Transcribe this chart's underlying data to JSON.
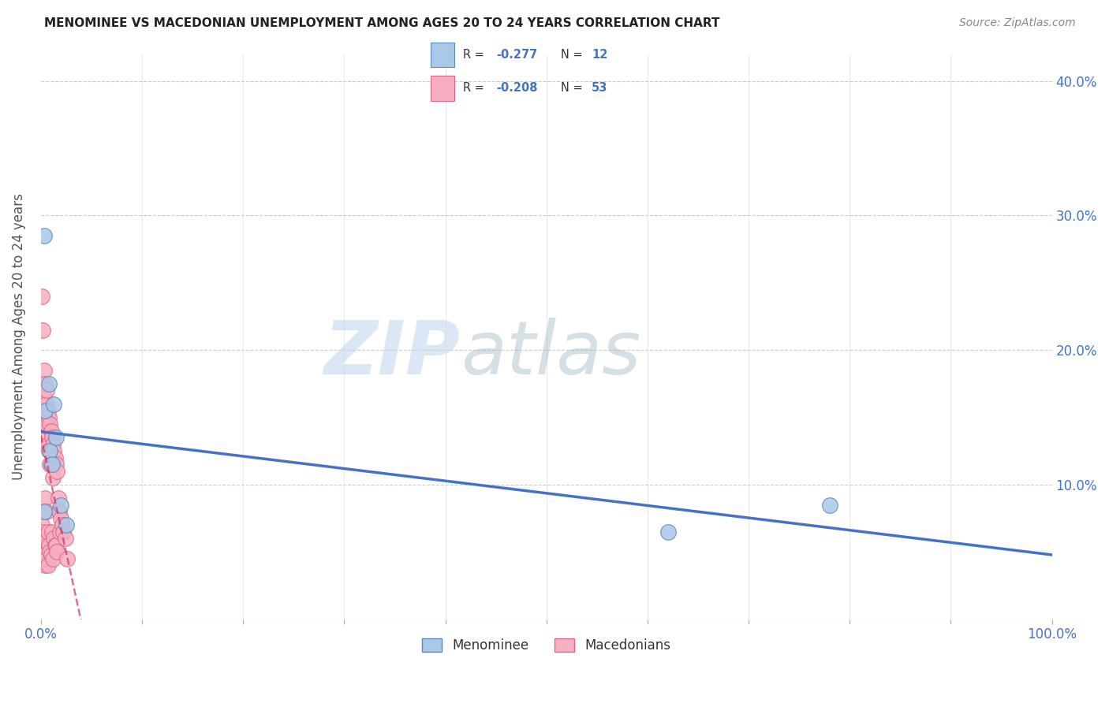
{
  "title": "MENOMINEE VS MACEDONIAN UNEMPLOYMENT AMONG AGES 20 TO 24 YEARS CORRELATION CHART",
  "source": "Source: ZipAtlas.com",
  "ylabel": "Unemployment Among Ages 20 to 24 years",
  "xlim": [
    0.0,
    1.0
  ],
  "ylim": [
    0.0,
    0.42
  ],
  "xticks": [
    0.0,
    0.1,
    0.2,
    0.3,
    0.4,
    0.5,
    0.6,
    0.7,
    0.8,
    0.9,
    1.0
  ],
  "yticks": [
    0.0,
    0.1,
    0.2,
    0.3,
    0.4
  ],
  "menominee_x": [
    0.003,
    0.004,
    0.008,
    0.009,
    0.011,
    0.013,
    0.015,
    0.02,
    0.025,
    0.62,
    0.78,
    0.003
  ],
  "menominee_y": [
    0.285,
    0.155,
    0.175,
    0.125,
    0.115,
    0.16,
    0.135,
    0.085,
    0.07,
    0.065,
    0.085,
    0.08
  ],
  "macedonian_x": [
    0.001,
    0.001,
    0.002,
    0.002,
    0.002,
    0.003,
    0.003,
    0.003,
    0.004,
    0.004,
    0.004,
    0.004,
    0.005,
    0.005,
    0.005,
    0.006,
    0.006,
    0.006,
    0.006,
    0.007,
    0.007,
    0.007,
    0.007,
    0.008,
    0.008,
    0.008,
    0.009,
    0.009,
    0.009,
    0.01,
    0.01,
    0.01,
    0.011,
    0.011,
    0.012,
    0.012,
    0.012,
    0.013,
    0.013,
    0.014,
    0.014,
    0.015,
    0.015,
    0.016,
    0.016,
    0.017,
    0.018,
    0.019,
    0.02,
    0.021,
    0.022,
    0.024,
    0.026
  ],
  "macedonian_y": [
    0.24,
    0.07,
    0.215,
    0.145,
    0.065,
    0.185,
    0.165,
    0.055,
    0.175,
    0.145,
    0.09,
    0.04,
    0.16,
    0.135,
    0.058,
    0.17,
    0.145,
    0.08,
    0.045,
    0.155,
    0.13,
    0.065,
    0.04,
    0.15,
    0.125,
    0.055,
    0.145,
    0.115,
    0.05,
    0.14,
    0.115,
    0.048,
    0.135,
    0.065,
    0.13,
    0.105,
    0.045,
    0.125,
    0.06,
    0.12,
    0.055,
    0.115,
    0.055,
    0.11,
    0.05,
    0.09,
    0.08,
    0.065,
    0.075,
    0.07,
    0.065,
    0.06,
    0.045
  ],
  "menominee_color": "#aac8e8",
  "macedonian_color": "#f5afc0",
  "menominee_edge": "#5588bb",
  "macedonian_edge": "#dd6688",
  "trend_menominee_color": "#4472c4",
  "trend_macedonian_color": "#cc3366",
  "R_menominee": -0.277,
  "N_menominee": 12,
  "R_macedonian": -0.208,
  "N_macedonian": 53,
  "watermark_zip": "ZIP",
  "watermark_atlas": "atlas",
  "background_color": "#ffffff",
  "grid_color": "#cccccc",
  "legend_menominee_label": "Menominee",
  "legend_macedonian_label": "Macedonians"
}
